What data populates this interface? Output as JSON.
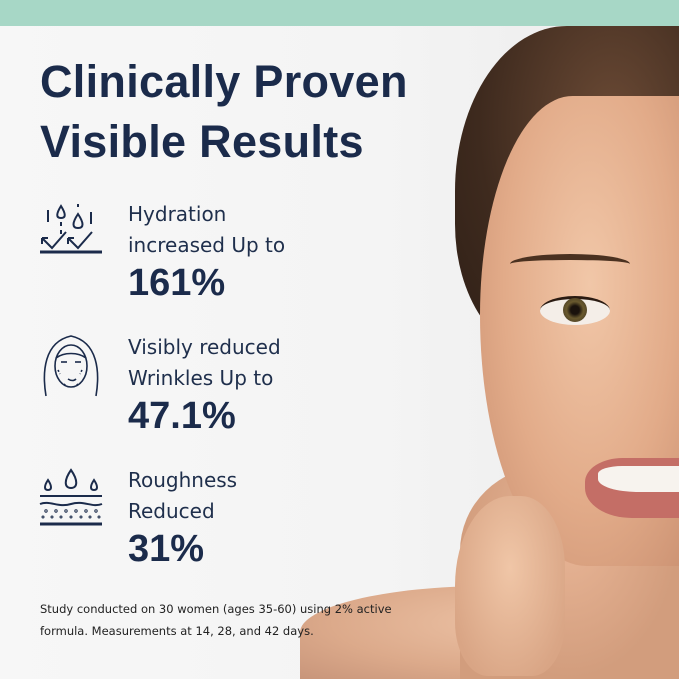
{
  "colors": {
    "top_band": "#a7d7c6",
    "heading": "#1b2b4b"
  },
  "title": {
    "line1": "Clinically Proven",
    "line2": "Visible Results"
  },
  "stats": [
    {
      "icon": "hydration-drops-icon",
      "label_line1": "Hydration",
      "label_line2": "increased Up to",
      "value": "161%"
    },
    {
      "icon": "face-wrinkles-icon",
      "label_line1": "Visibly reduced",
      "label_line2": "Wrinkles Up to",
      "value": "47.1%"
    },
    {
      "icon": "skin-layers-drops-icon",
      "label_line1": "Roughness",
      "label_line2": "Reduced",
      "value": "31%"
    }
  ],
  "footnote": {
    "line1": "Study conducted on 30 women (ages 35-60) using 2% active",
    "line2": "formula. Measurements at 14, 28, and 42 days."
  }
}
